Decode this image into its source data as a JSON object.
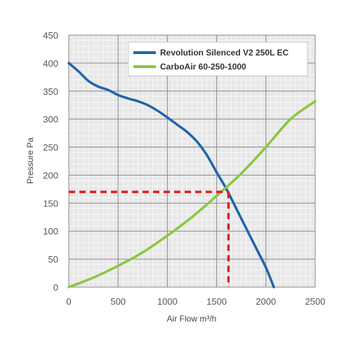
{
  "chart_data": {
    "type": "line",
    "title": "",
    "xlabel": "Air Flow m³/h",
    "ylabel": "Pressure Pa",
    "xlim": [
      0,
      2500
    ],
    "ylim": [
      0,
      450
    ],
    "xticks": [
      0,
      500,
      1000,
      1500,
      2000,
      2500
    ],
    "yticks": [
      0,
      50,
      100,
      150,
      200,
      250,
      300,
      350,
      400,
      450
    ],
    "grid": true,
    "legend_position": "top-right",
    "series": [
      {
        "name": "Revolution Silenced V2 250L EC",
        "color": "#1f66ad",
        "x": [
          0,
          100,
          200,
          300,
          400,
          500,
          600,
          700,
          800,
          900,
          1000,
          1100,
          1200,
          1300,
          1400,
          1500,
          1600,
          1700,
          1800,
          1900,
          2000,
          2080
        ],
        "y": [
          400,
          385,
          368,
          358,
          352,
          343,
          337,
          332,
          325,
          315,
          303,
          290,
          277,
          260,
          236,
          205,
          175,
          140,
          105,
          70,
          35,
          0
        ]
      },
      {
        "name": "CarboAir 60-250-1000",
        "color": "#8cc63f",
        "x": [
          0,
          250,
          500,
          750,
          1000,
          1250,
          1500,
          1750,
          2000,
          2250,
          2500
        ],
        "y": [
          0,
          17,
          38,
          62,
          92,
          125,
          163,
          203,
          250,
          300,
          332
        ]
      }
    ],
    "operating_point": {
      "x": 1620,
      "y": 170,
      "color": "#e02020"
    }
  }
}
